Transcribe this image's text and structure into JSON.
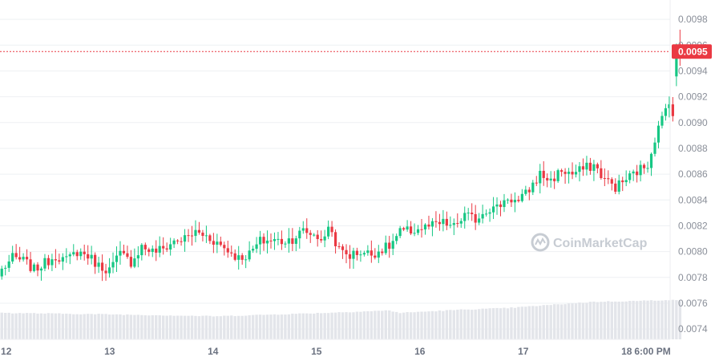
{
  "colors": {
    "up": "#16c784",
    "down": "#ea3943",
    "volume": "#e3e5ea",
    "grid": "#eef0f3",
    "price_line": "#ea3943",
    "price_badge": "#ea3943",
    "axis_text": "#8a8f99",
    "watermark": "#c7ccd3"
  },
  "watermark": {
    "text": "CoinMarketCap",
    "icon": "coinmarketcap-logo-icon"
  },
  "current_price": {
    "label": "0.0095",
    "value": 0.00955
  },
  "chart_data": {
    "type": "candlestick",
    "y_axis": {
      "position": "right",
      "range": [
        0.00732,
        0.0099
      ],
      "ticks": [
        "0.0074",
        "0.0076",
        "0.0078",
        "0.0080",
        "0.0082",
        "0.0084",
        "0.0086",
        "0.0088",
        "0.0090",
        "0.0092",
        "0.0094",
        "0.0096",
        "0.0098"
      ]
    },
    "x_axis": {
      "ticks": [
        {
          "label": "12",
          "t": 12
        },
        {
          "label": "13",
          "t": 13
        },
        {
          "label": "14",
          "t": 14
        },
        {
          "label": "15",
          "t": 15
        },
        {
          "label": "16",
          "t": 16
        },
        {
          "label": "17",
          "t": 17
        },
        {
          "label": "18",
          "t": 18
        },
        {
          "label": "6:00 PM",
          "t": 18.25
        }
      ],
      "range": [
        11.94,
        18.42
      ]
    },
    "grid": true,
    "candles_start": 11.94,
    "candles_step": 0.0347,
    "anchors": [
      [
        0,
        0.00786
      ],
      [
        3,
        0.00795
      ],
      [
        6,
        0.00793
      ],
      [
        9,
        0.00786
      ],
      [
        12,
        0.00791
      ],
      [
        15,
        0.00797
      ],
      [
        18,
        0.00793
      ],
      [
        21,
        0.008
      ],
      [
        24,
        0.00797
      ],
      [
        27,
        0.00789
      ],
      [
        30,
        0.00786
      ],
      [
        33,
        0.00798
      ],
      [
        36,
        0.00792
      ],
      [
        39,
        0.00804
      ],
      [
        42,
        0.008
      ],
      [
        45,
        0.00802
      ],
      [
        48,
        0.00808
      ],
      [
        51,
        0.0081
      ],
      [
        54,
        0.00815
      ],
      [
        57,
        0.00812
      ],
      [
        60,
        0.00807
      ],
      [
        63,
        0.00801
      ],
      [
        66,
        0.00795
      ],
      [
        69,
        0.00798
      ],
      [
        72,
        0.00808
      ],
      [
        75,
        0.00809
      ],
      [
        78,
        0.00808
      ],
      [
        81,
        0.0081
      ],
      [
        84,
        0.00816
      ],
      [
        87,
        0.00813
      ],
      [
        90,
        0.00809
      ],
      [
        91,
        0.00821
      ],
      [
        94,
        0.00801
      ],
      [
        97,
        0.00797
      ],
      [
        100,
        0.008
      ],
      [
        103,
        0.00798
      ],
      [
        106,
        0.00802
      ],
      [
        108,
        0.00804
      ],
      [
        111,
        0.00815
      ],
      [
        114,
        0.00816
      ],
      [
        117,
        0.00818
      ],
      [
        120,
        0.0082
      ],
      [
        123,
        0.00822
      ],
      [
        126,
        0.00819
      ],
      [
        129,
        0.00828
      ],
      [
        132,
        0.00825
      ],
      [
        135,
        0.00833
      ],
      [
        138,
        0.00834
      ],
      [
        141,
        0.00842
      ],
      [
        144,
        0.00838
      ],
      [
        147,
        0.00848
      ],
      [
        150,
        0.0086
      ],
      [
        153,
        0.00855
      ],
      [
        156,
        0.00863
      ],
      [
        159,
        0.0086
      ],
      [
        162,
        0.00864
      ],
      [
        165,
        0.00867
      ],
      [
        168,
        0.00856
      ],
      [
        171,
        0.0085
      ],
      [
        174,
        0.00856
      ],
      [
        177,
        0.00862
      ],
      [
        180,
        0.00868
      ],
      [
        182,
        0.00888
      ],
      [
        184,
        0.00903
      ],
      [
        186,
        0.00918
      ],
      [
        188,
        0.00955
      ],
      [
        189,
        0.00955
      ]
    ],
    "volume_levels": [
      [
        0,
        0.55
      ],
      [
        30,
        0.52
      ],
      [
        60,
        0.48
      ],
      [
        90,
        0.55
      ],
      [
        108,
        0.6
      ],
      [
        111,
        0.55
      ],
      [
        129,
        0.62
      ],
      [
        141,
        0.65
      ],
      [
        150,
        0.7
      ],
      [
        165,
        0.78
      ],
      [
        178,
        0.8
      ],
      [
        186,
        0.82
      ],
      [
        189,
        0.8
      ]
    ]
  }
}
